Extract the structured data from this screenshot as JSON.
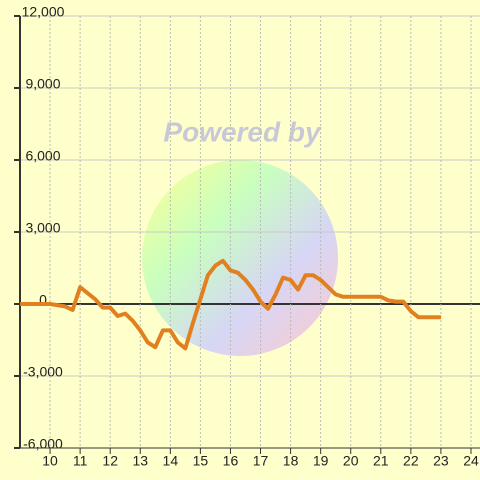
{
  "chart_data": {
    "type": "line",
    "watermark": "Powered by",
    "x": [
      9,
      10,
      10.5,
      10.75,
      11,
      11.5,
      11.75,
      12,
      12.25,
      12.5,
      12.75,
      13,
      13.25,
      13.5,
      13.75,
      14,
      14.25,
      14.5,
      14.75,
      15,
      15.25,
      15.5,
      15.75,
      16,
      16.25,
      16.5,
      16.75,
      17,
      17.25,
      17.5,
      17.75,
      18,
      18.25,
      18.5,
      18.75,
      19,
      19.25,
      19.5,
      19.75,
      20,
      20.5,
      21,
      21.25,
      21.5,
      21.75,
      22,
      22.25,
      22.5,
      23
    ],
    "series": [
      {
        "color": "#e08020",
        "values": [
          0,
          0,
          -100,
          -250,
          700,
          200,
          -150,
          -150,
          -500,
          -400,
          -700,
          -1100,
          -1600,
          -1800,
          -1100,
          -1100,
          -1600,
          -1850,
          -800,
          200,
          1200,
          1600,
          1800,
          1400,
          1300,
          1000,
          600,
          100,
          -200,
          400,
          1100,
          1000,
          600,
          1200,
          1200,
          1000,
          700,
          400,
          300,
          300,
          300,
          300,
          150,
          100,
          100,
          -300,
          -550,
          -550,
          -550
        ]
      }
    ],
    "xlim": [
      9,
      24.3
    ],
    "xticks": [
      10,
      11,
      12,
      13,
      14,
      15,
      16,
      17,
      18,
      19,
      20,
      21,
      22,
      23,
      24
    ],
    "ylim": [
      -6000,
      12000
    ],
    "yticks": [
      {
        "value": -6000,
        "label": "-6,000"
      },
      {
        "value": -3000,
        "label": "-3,000"
      },
      0,
      {
        "value": 3000,
        "label": "3,000"
      },
      {
        "value": 6000,
        "label": "6,000"
      },
      {
        "value": 9000,
        "label": "9,000"
      },
      {
        "value": 12000,
        "label": "12,000"
      }
    ],
    "grid": true
  }
}
